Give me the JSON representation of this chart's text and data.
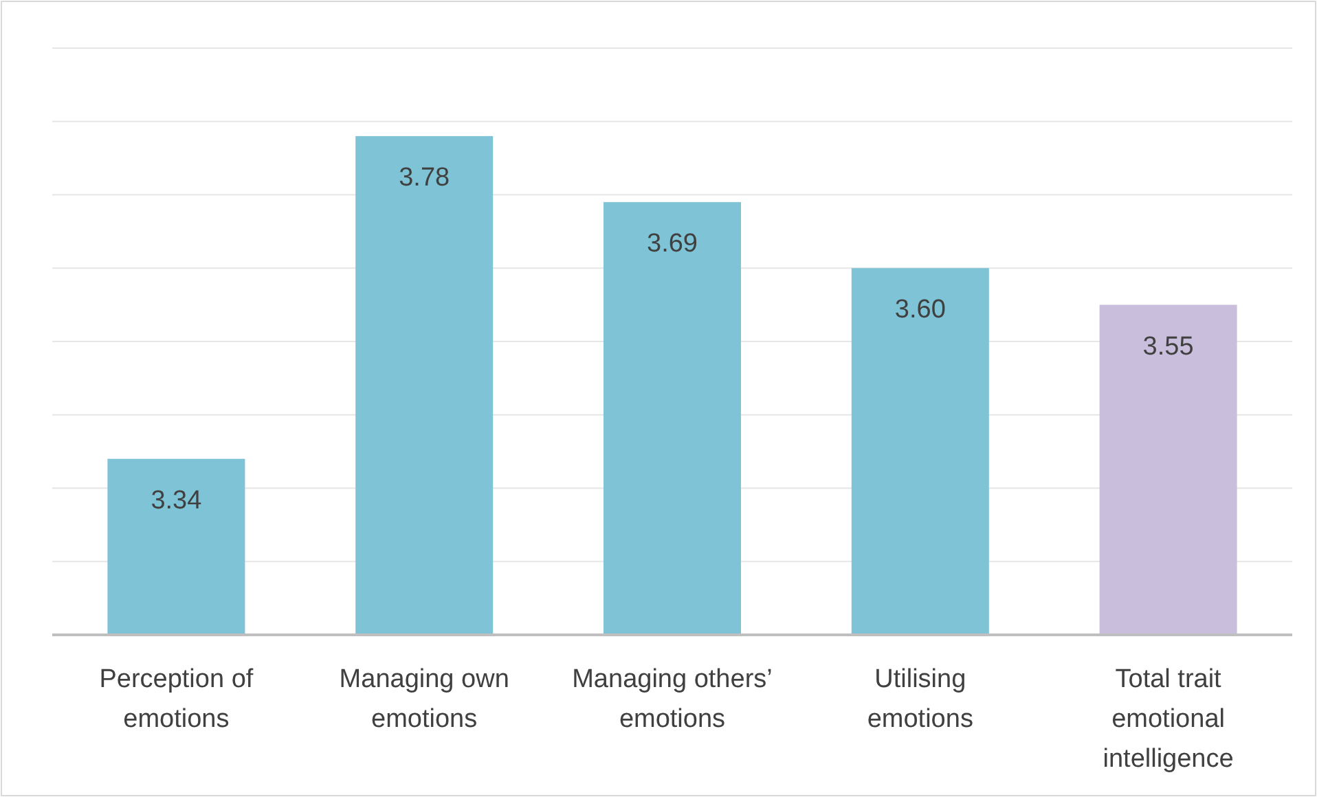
{
  "chart_data": {
    "type": "bar",
    "categories": [
      "Perception of emotions",
      "Managing own emotions",
      "Managing others’ emotions",
      "Utilising emotions",
      "Total trait emotional intelligence"
    ],
    "values": [
      3.34,
      3.78,
      3.69,
      3.6,
      3.55
    ],
    "colors": [
      "#7fc4d6",
      "#7fc4d6",
      "#7fc4d6",
      "#7fc4d6",
      "#c9bfdc"
    ],
    "ylim": [
      3.1,
      3.9
    ],
    "yticks": [
      {
        "value": 3.1,
        "label": null
      },
      {
        "value": 3.2,
        "label": null
      },
      {
        "value": 3.3,
        "label": null
      },
      {
        "value": 3.4,
        "label": null
      },
      {
        "value": 3.5,
        "label": null
      },
      {
        "value": 3.6,
        "label": null
      },
      {
        "value": 3.7,
        "label": null
      },
      {
        "value": 3.8,
        "label": null
      },
      {
        "value": 3.9,
        "label": null
      }
    ],
    "value_labels": [
      "3.34",
      "3.78",
      "3.69",
      "3.60",
      "3.55"
    ],
    "grid": "y",
    "tick_labels": "x"
  }
}
